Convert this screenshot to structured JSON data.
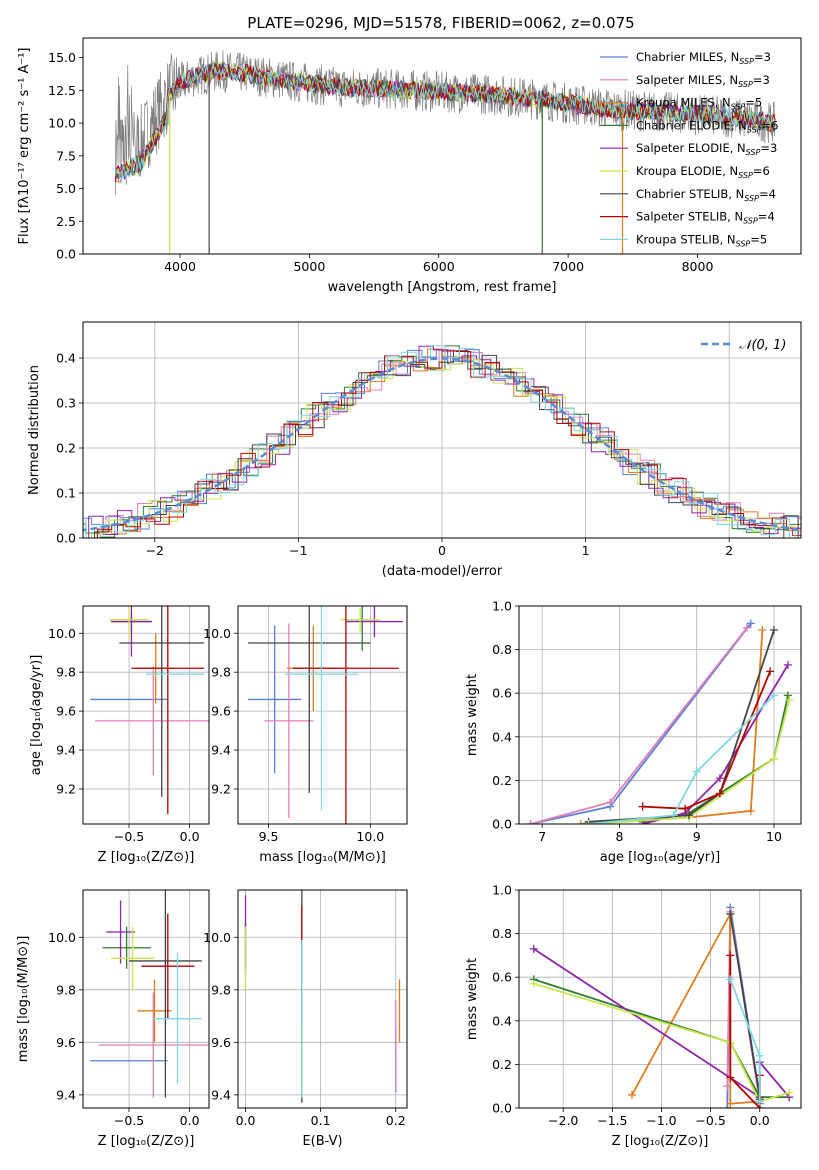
{
  "title": "PLATE=0296, MJD=51578, FIBERID=0062, z=0.075",
  "colors": {
    "Chabrier MILES": "#5a7fd6",
    "Salpeter MILES": "#e07fb8",
    "Kroupa MILES": "#e07b20",
    "Chabrier ELODIE": "#2e7d32",
    "Salpeter ELODIE": "#8e24aa",
    "Kroupa ELODIE": "#c8e64c",
    "Chabrier STELIB": "#444444",
    "Salpeter STELIB": "#b00000",
    "Kroupa STELIB": "#7fd8e0"
  },
  "chart_data": [
    {
      "id": "spectrum",
      "type": "line",
      "xlabel": "wavelength [Angstrom, rest frame]",
      "ylabel": "Flux [fλ10⁻¹⁷ erg cm⁻² s⁻¹ A⁻¹]",
      "xlim": [
        3250,
        8800
      ],
      "ylim": [
        0,
        16.5
      ],
      "xticks": [
        4000,
        5000,
        6000,
        7000,
        8000
      ],
      "yticks": [
        0.0,
        2.5,
        5.0,
        7.5,
        10.0,
        12.5,
        15.0
      ],
      "legend_position": "top-right",
      "legend": [
        {
          "model": "Chabrier MILES",
          "n": "3"
        },
        {
          "model": "Salpeter MILES",
          "n": "3"
        },
        {
          "model": "Kroupa MILES",
          "n": "5"
        },
        {
          "model": "Chabrier ELODIE",
          "n": "6"
        },
        {
          "model": "Salpeter ELODIE",
          "n": "3"
        },
        {
          "model": "Kroupa ELODIE",
          "n": "6"
        },
        {
          "model": "Chabrier STELIB",
          "n": "4"
        },
        {
          "model": "Salpeter STELIB",
          "n": "4"
        },
        {
          "model": "Kroupa STELIB",
          "n": "5"
        }
      ],
      "data_continuum": {
        "x": [
          3500,
          3700,
          3900,
          4000,
          4100,
          4300,
          4500,
          4800,
          5000,
          5300,
          5600,
          6000,
          6400,
          6800,
          7000,
          7400,
          7800,
          8200,
          8600
        ],
        "y": [
          7.5,
          8.5,
          12.0,
          13.0,
          13.5,
          14.0,
          13.8,
          13.3,
          13.0,
          12.7,
          12.6,
          12.4,
          12.2,
          11.8,
          11.5,
          11.0,
          10.8,
          10.5,
          10.0
        ]
      }
    },
    {
      "id": "residuals",
      "type": "line",
      "xlabel": "(data-model)/error",
      "ylabel": "Normed distribution",
      "xlim": [
        -2.5,
        2.5
      ],
      "ylim": [
        0,
        0.48
      ],
      "xticks": [
        -2,
        -1,
        0,
        1,
        2
      ],
      "yticks": [
        0.0,
        0.1,
        0.2,
        0.3,
        0.4
      ],
      "grid": true,
      "legend_position": "top-right",
      "reference_curve": "𝒩(0, 1)"
    },
    {
      "id": "age-vs-Z",
      "type": "scatter",
      "xlabel": "Z [log₁₀(Z/Z⊙)]",
      "ylabel": "age  [log₁₀(age/yr)]",
      "xlim": [
        -0.88,
        0.16
      ],
      "ylim": [
        9.02,
        10.14
      ],
      "xticks": [
        -0.5,
        0.0
      ],
      "xticklabels": [
        "−0.5",
        "0.0"
      ],
      "yticks": [
        9.2,
        9.4,
        9.6,
        9.8,
        10.0
      ],
      "grid": true,
      "points": [
        {
          "model": "Chabrier MILES",
          "x": -0.5,
          "xerr": 0.32,
          "y": 9.66,
          "yerr": 0.0
        },
        {
          "model": "Salpeter MILES",
          "x": -0.3,
          "xerr": 0.48,
          "y": 9.55,
          "yerr": 0.28
        },
        {
          "model": "Kroupa MILES",
          "x": -0.28,
          "xerr": 0.16,
          "y": 9.82,
          "yerr": 0.18
        },
        {
          "model": "Chabrier ELODIE",
          "x": -0.48,
          "xerr": 0.16,
          "y": 10.06,
          "yerr": 0.05
        },
        {
          "model": "Salpeter ELODIE",
          "x": -0.48,
          "xerr": 0.17,
          "y": 10.06,
          "yerr": 0.18
        },
        {
          "model": "Kroupa ELODIE",
          "x": -0.5,
          "xerr": 0.16,
          "y": 10.07,
          "yerr": 0.1
        },
        {
          "model": "Chabrier STELIB",
          "x": -0.23,
          "xerr": 0.35,
          "y": 9.95,
          "yerr": 0.79
        },
        {
          "model": "Salpeter STELIB",
          "x": -0.18,
          "xerr": 0.3,
          "y": 9.82,
          "yerr": 0.75
        },
        {
          "model": "Kroupa STELIB",
          "x": -0.12,
          "xerr": 0.24,
          "y": 9.79,
          "yerr": 0.0
        }
      ]
    },
    {
      "id": "age-vs-mass",
      "type": "scatter",
      "xlabel": "mass [log₁₀(M/M⊙)]",
      "xlim": [
        9.35,
        10.18
      ],
      "ylim": [
        9.02,
        10.14
      ],
      "xticks": [
        9.5,
        10.0
      ],
      "yticks": [
        9.2,
        9.4,
        9.6,
        9.8,
        10.0
      ],
      "grid": true,
      "points": [
        {
          "model": "Chabrier MILES",
          "x": 9.53,
          "xerr": 0.13,
          "y": 9.66,
          "yerr": 0.38
        },
        {
          "model": "Salpeter MILES",
          "x": 9.6,
          "xerr": 0.12,
          "y": 9.55,
          "yerr": 0.5
        },
        {
          "model": "Kroupa MILES",
          "x": 9.72,
          "xerr": 0.13,
          "y": 9.82,
          "yerr": 0.22
        },
        {
          "model": "Chabrier ELODIE",
          "x": 9.96,
          "xerr": 0.08,
          "y": 10.07,
          "yerr": 0.16
        },
        {
          "model": "Salpeter ELODIE",
          "x": 10.02,
          "xerr": 0.14,
          "y": 10.06,
          "yerr": 0.08
        },
        {
          "model": "Kroupa ELODIE",
          "x": 9.95,
          "xerr": 0.1,
          "y": 10.07,
          "yerr": 0.06
        },
        {
          "model": "Chabrier STELIB",
          "x": 9.7,
          "xerr": 0.3,
          "y": 9.95,
          "yerr": 0.77
        },
        {
          "model": "Salpeter STELIB",
          "x": 9.88,
          "xerr": 0.26,
          "y": 9.82,
          "yerr": 0.88
        },
        {
          "model": "Kroupa STELIB",
          "x": 9.76,
          "xerr": 0.18,
          "y": 9.79,
          "yerr": 0.7
        }
      ]
    },
    {
      "id": "weight-vs-age",
      "type": "line",
      "xlabel": "age  [log₁₀(age/yr)]",
      "ylabel": "mass weight",
      "xlim": [
        6.7,
        10.35
      ],
      "ylim": [
        0,
        1.0
      ],
      "xticks": [
        7,
        8,
        9,
        10
      ],
      "yticks": [
        0.0,
        0.2,
        0.4,
        0.6,
        0.8,
        1.0
      ],
      "grid": true,
      "series": [
        {
          "model": "Chabrier MILES",
          "x": [
            6.85,
            7.88,
            9.7
          ],
          "y": [
            0.0,
            0.08,
            0.92
          ]
        },
        {
          "model": "Salpeter MILES",
          "x": [
            6.85,
            7.88,
            9.65
          ],
          "y": [
            0.0,
            0.1,
            0.9
          ]
        },
        {
          "model": "Kroupa MILES",
          "x": [
            7.5,
            8.9,
            9.7,
            9.85
          ],
          "y": [
            0.0,
            0.03,
            0.06,
            0.89
          ]
        },
        {
          "model": "Chabrier ELODIE",
          "x": [
            8.3,
            8.9,
            10.0,
            10.18
          ],
          "y": [
            0.01,
            0.05,
            0.3,
            0.59
          ]
        },
        {
          "model": "Salpeter ELODIE",
          "x": [
            8.3,
            8.85,
            9.3,
            10.18
          ],
          "y": [
            0.0,
            0.05,
            0.21,
            0.73
          ]
        },
        {
          "model": "Kroupa ELODIE",
          "x": [
            7.6,
            8.9,
            10.0,
            10.2
          ],
          "y": [
            0.0,
            0.03,
            0.3,
            0.57
          ]
        },
        {
          "model": "Chabrier STELIB",
          "x": [
            7.6,
            8.9,
            9.3,
            10.0
          ],
          "y": [
            0.01,
            0.04,
            0.14,
            0.89
          ]
        },
        {
          "model": "Salpeter STELIB",
          "x": [
            8.3,
            8.85,
            9.3,
            9.95
          ],
          "y": [
            0.08,
            0.07,
            0.14,
            0.7
          ]
        },
        {
          "model": "Kroupa STELIB",
          "x": [
            7.6,
            8.7,
            9.0,
            10.0
          ],
          "y": [
            0.0,
            0.04,
            0.24,
            0.59
          ]
        }
      ]
    },
    {
      "id": "mass-vs-Z",
      "type": "scatter",
      "xlabel": "Z [log₁₀(Z/Z⊙)]",
      "ylabel": "mass [log₁₀(M/M⊙)]",
      "xlim": [
        -0.88,
        0.16
      ],
      "ylim": [
        9.35,
        10.18
      ],
      "xticks": [
        -0.5,
        0.0
      ],
      "xticklabels": [
        "−0.5",
        "0.0"
      ],
      "yticks": [
        9.4,
        9.6,
        9.8,
        10.0
      ],
      "grid": true,
      "points": [
        {
          "model": "Chabrier MILES",
          "x": -0.5,
          "xerr": 0.32,
          "y": 9.53,
          "yerr": 0.0
        },
        {
          "model": "Salpeter MILES",
          "x": -0.3,
          "xerr": 0.45,
          "y": 9.59,
          "yerr": 0.2
        },
        {
          "model": "Kroupa MILES",
          "x": -0.29,
          "xerr": 0.14,
          "y": 9.72,
          "yerr": 0.12
        },
        {
          "model": "Chabrier ELODIE",
          "x": -0.52,
          "xerr": 0.2,
          "y": 9.96,
          "yerr": 0.08
        },
        {
          "model": "Salpeter ELODIE",
          "x": -0.57,
          "xerr": 0.12,
          "y": 10.02,
          "yerr": 0.12
        },
        {
          "model": "Kroupa ELODIE",
          "x": -0.47,
          "xerr": 0.18,
          "y": 9.92,
          "yerr": 0.12
        },
        {
          "model": "Chabrier STELIB",
          "x": -0.2,
          "xerr": 0.3,
          "y": 9.91,
          "yerr": 0.52
        },
        {
          "model": "Salpeter STELIB",
          "x": -0.18,
          "xerr": 0.22,
          "y": 9.89,
          "yerr": 0.2
        },
        {
          "model": "Kroupa STELIB",
          "x": -0.1,
          "xerr": 0.2,
          "y": 9.69,
          "yerr": 0.25
        }
      ]
    },
    {
      "id": "mass-vs-EBV",
      "type": "scatter",
      "xlabel": "E(B-V)",
      "xlim": [
        -0.01,
        0.215
      ],
      "ylim": [
        9.35,
        10.18
      ],
      "xticks": [
        0.0,
        0.1,
        0.2
      ],
      "yticks": [
        9.4,
        9.6,
        9.8,
        10.0
      ],
      "grid": true,
      "points": [
        {
          "model": "Chabrier MILES",
          "x": 0.2,
          "xerr": 0.0,
          "y": 9.53,
          "yerr": 0.12
        },
        {
          "model": "Salpeter MILES",
          "x": 0.2,
          "xerr": 0.0,
          "y": 9.59,
          "yerr": 0.17
        },
        {
          "model": "Kroupa MILES",
          "x": 0.205,
          "xerr": 0.0,
          "y": 9.72,
          "yerr": 0.12
        },
        {
          "model": "Chabrier ELODIE",
          "x": 0.0,
          "xerr": 0.0,
          "y": 9.96,
          "yerr": 0.1
        },
        {
          "model": "Salpeter ELODIE",
          "x": 0.0,
          "xerr": 0.0,
          "y": 10.02,
          "yerr": 0.14
        },
        {
          "model": "Kroupa ELODIE",
          "x": 0.0,
          "xerr": 0.0,
          "y": 9.92,
          "yerr": 0.12
        },
        {
          "model": "Chabrier STELIB",
          "x": 0.075,
          "xerr": 0.0,
          "y": 9.91,
          "yerr": 0.54
        },
        {
          "model": "Salpeter STELIB",
          "x": 0.075,
          "xerr": 0.0,
          "y": 9.89,
          "yerr": 0.23
        },
        {
          "model": "Kroupa STELIB",
          "x": 0.075,
          "xerr": 0.0,
          "y": 9.69,
          "yerr": 0.3
        }
      ]
    },
    {
      "id": "weight-vs-Z",
      "type": "line",
      "xlabel": "Z [log₁₀(Z/Z⊙)]",
      "ylabel": "mass weight",
      "xlim": [
        -2.45,
        0.42
      ],
      "ylim": [
        0,
        1.0
      ],
      "xticks": [
        -2.0,
        -1.5,
        -1.0,
        -0.5,
        0.0
      ],
      "xticklabels": [
        "−2.0",
        "−1.5",
        "−1.0",
        "−0.5",
        "0.0"
      ],
      "yticks": [
        0.0,
        0.2,
        0.4,
        0.6,
        0.8,
        1.0
      ],
      "grid": true,
      "series": [
        {
          "model": "Chabrier MILES",
          "x": [
            -0.33,
            -0.3,
            0.0,
            0.0
          ],
          "y": [
            0.0,
            0.92,
            0.05,
            0.02
          ]
        },
        {
          "model": "Salpeter MILES",
          "x": [
            -0.33,
            -0.3,
            0.0
          ],
          "y": [
            0.1,
            0.9,
            0.03
          ]
        },
        {
          "model": "Kroupa MILES",
          "x": [
            -1.3,
            -0.3,
            -0.3,
            0.0
          ],
          "y": [
            0.06,
            0.89,
            0.02,
            0.03
          ]
        },
        {
          "model": "Chabrier ELODIE",
          "x": [
            -2.3,
            -0.3,
            0.0,
            0.3
          ],
          "y": [
            0.59,
            0.3,
            0.05,
            0.05
          ]
        },
        {
          "model": "Salpeter ELODIE",
          "x": [
            -2.3,
            0.0,
            0.0,
            0.3
          ],
          "y": [
            0.73,
            0.05,
            0.21,
            0.05
          ]
        },
        {
          "model": "Kroupa ELODIE",
          "x": [
            -2.3,
            -0.3,
            0.0,
            0.3
          ],
          "y": [
            0.57,
            0.3,
            0.03,
            0.07
          ]
        },
        {
          "model": "Chabrier STELIB",
          "x": [
            -0.3,
            0.0,
            0.0
          ],
          "y": [
            0.89,
            0.05,
            0.04
          ]
        },
        {
          "model": "Salpeter STELIB",
          "x": [
            -0.3,
            -0.3,
            0.0,
            0.0
          ],
          "y": [
            0.7,
            0.14,
            0.0,
            0.15
          ]
        },
        {
          "model": "Kroupa STELIB",
          "x": [
            -0.3,
            0.0,
            0.0
          ],
          "y": [
            0.59,
            0.24,
            0.03
          ]
        }
      ]
    }
  ]
}
